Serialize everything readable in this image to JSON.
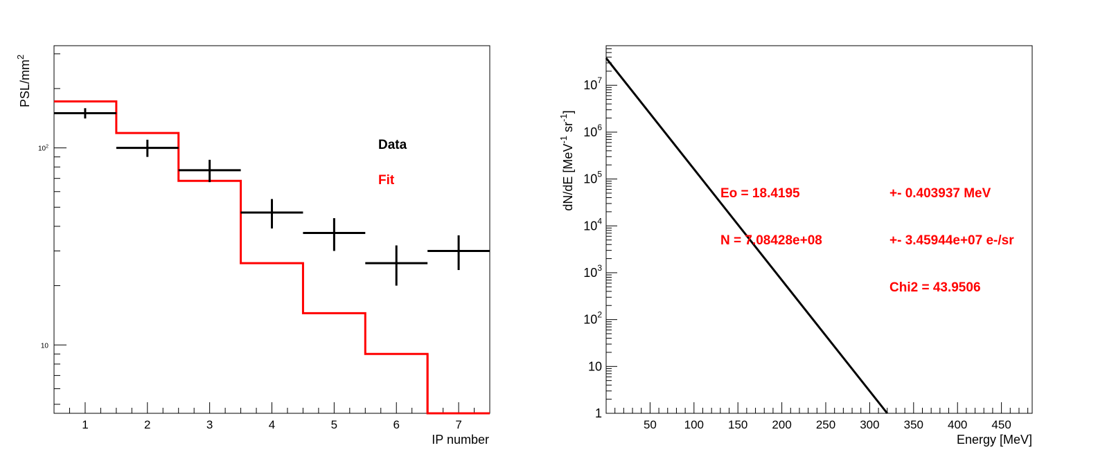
{
  "colors": {
    "data": "#000000",
    "fit": "#ff0000",
    "frame": "#000000"
  },
  "chart_data": [
    {
      "type": "line",
      "subtype": "histogram-with-error-bars",
      "xlabel": "IP number",
      "ylabel": "PSL/mm",
      "ylabel_sup": "2",
      "xlim": [
        0.5,
        7.5
      ],
      "ylim": [
        4.5,
        330
      ],
      "yscale": "log",
      "grid": false,
      "x_ticks": [
        1,
        2,
        3,
        4,
        5,
        6,
        7
      ],
      "y_ticks": [
        {
          "value": 100,
          "label": "10",
          "sup": "2"
        },
        {
          "value": 10,
          "label": "10",
          "sup": ""
        }
      ],
      "legend_placement": "center-right",
      "series": [
        {
          "name": "Data",
          "color": "#000000",
          "x": [
            1,
            2,
            3,
            4,
            5,
            6,
            7
          ],
          "y": [
            150,
            100,
            77,
            47,
            37,
            26,
            30
          ],
          "y_err": [
            9,
            10,
            10,
            8,
            7,
            6,
            6
          ]
        },
        {
          "name": "Fit",
          "color": "#ff0000",
          "x": [
            1,
            2,
            3,
            4,
            5,
            6,
            7
          ],
          "y": [
            172,
            119,
            68,
            26,
            14.5,
            9,
            4.5
          ]
        }
      ]
    },
    {
      "type": "line",
      "xlabel": "Energy [MeV]",
      "ylabel": "dN/dE [MeV",
      "ylabel_sup1": "-1",
      "ylabel_mid": " sr",
      "ylabel_sup2": "-1",
      "ylabel_end": "]",
      "xlim": [
        0,
        485
      ],
      "ylim": [
        1,
        70000000
      ],
      "yscale": "log",
      "grid": false,
      "x_ticks": [
        50,
        100,
        150,
        200,
        250,
        300,
        350,
        400,
        450
      ],
      "y_ticks": [
        {
          "value": 1,
          "label": "1",
          "sup": ""
        },
        {
          "value": 10,
          "label": "10",
          "sup": ""
        },
        {
          "value": 100,
          "label": "10",
          "sup": "2"
        },
        {
          "value": 1000,
          "label": "10",
          "sup": "3"
        },
        {
          "value": 10000,
          "label": "10",
          "sup": "4"
        },
        {
          "value": 100000,
          "label": "10",
          "sup": "5"
        },
        {
          "value": 1000000,
          "label": "10",
          "sup": "6"
        },
        {
          "value": 10000000,
          "label": "10",
          "sup": "7"
        }
      ],
      "series": [
        {
          "color": "#000000",
          "x": [
            0,
            320
          ],
          "y": [
            38000000,
            1
          ]
        }
      ],
      "annotations": {
        "eo": "Eo =  18.4195",
        "eo_err": "+-  0.403937 MeV",
        "n": "N =  7.08428e+08",
        "n_err": "+-  3.45944e+07 e-/sr",
        "chi2": "Chi2 =  43.9506"
      }
    }
  ]
}
